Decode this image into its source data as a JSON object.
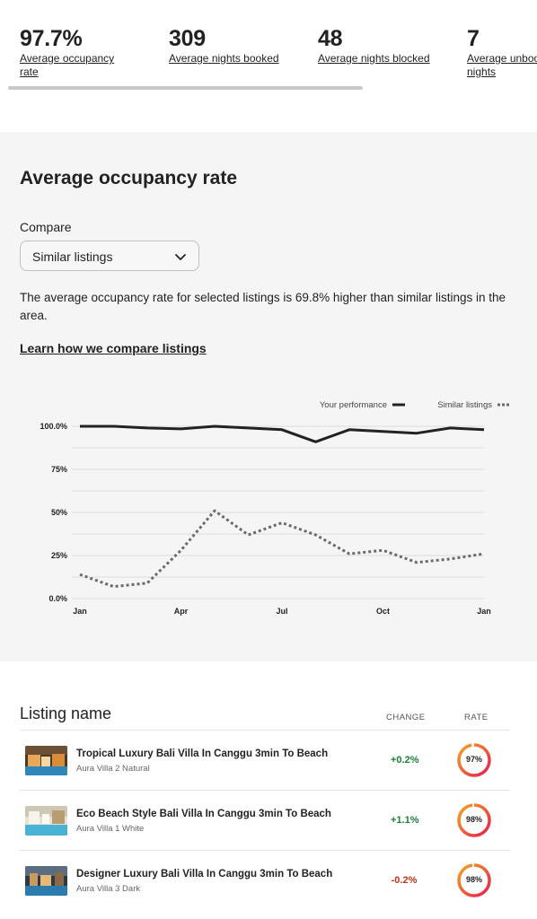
{
  "stats": [
    {
      "value": "97.7%",
      "label1": "Average occupancy",
      "label2": "rate"
    },
    {
      "value": "309",
      "label1": "Average nights booked",
      "label2": ""
    },
    {
      "value": "48",
      "label1": "Average nights blocked",
      "label2": ""
    },
    {
      "value": "7",
      "label1": "Average unbooked",
      "label2": "nights"
    }
  ],
  "panel": {
    "title": "Average occupancy rate",
    "compare_label": "Compare",
    "select_value": "Similar listings",
    "description": "The average occupancy rate for selected listings is 69.8% higher than similar listings in the area.",
    "learn_link": "Learn how we compare listings"
  },
  "chart_data": {
    "type": "line",
    "x": [
      "Jan",
      "Feb",
      "Mar",
      "Apr",
      "May",
      "Jun",
      "Jul",
      "Aug",
      "Sep",
      "Oct",
      "Nov",
      "Dec",
      "Jan"
    ],
    "x_tick_labels": [
      "Jan",
      "Apr",
      "Jul",
      "Oct",
      "Jan"
    ],
    "y_tick_labels": [
      "100.0%",
      "75%",
      "50%",
      "25%",
      "0.0%"
    ],
    "ylim": [
      0,
      100
    ],
    "grid": true,
    "legend_position": "top-right",
    "series": [
      {
        "name": "Your performance",
        "style": "solid",
        "color": "#222222",
        "values": [
          100,
          100,
          99,
          98.5,
          100,
          99,
          98,
          91,
          98,
          97,
          96,
          99,
          98
        ]
      },
      {
        "name": "Similar listings",
        "style": "dotted",
        "color": "#6a6a6a",
        "values": [
          14,
          7,
          9,
          28,
          51,
          37,
          44,
          37,
          26,
          28,
          21,
          23,
          26
        ]
      }
    ]
  },
  "table": {
    "title": "Listing name",
    "col_change": "CHANGE",
    "col_rate": "RATE",
    "rows": [
      {
        "title": "Tropical Luxury Bali Villa In Canggu 3min To Beach",
        "subtitle": "Aura Villa 2 Natural",
        "change": "+0.2%",
        "rate": "97%",
        "rate_value": 97
      },
      {
        "title": "Eco Beach Style Bali Villa In Canggu 3min To Beach",
        "subtitle": "Aura Villa 1 White",
        "change": "+1.1%",
        "rate": "98%",
        "rate_value": 98
      },
      {
        "title": "Designer Luxury Bali Villa In Canggu 3min To Beach",
        "subtitle": "Aura Villa 3 Dark",
        "change": "-0.2%",
        "rate": "98%",
        "rate_value": 98
      }
    ]
  },
  "colors": {
    "positive": "#1a7f37",
    "negative": "#c13515",
    "ring_start": "#e61e4d",
    "ring_end": "#f5a623"
  }
}
